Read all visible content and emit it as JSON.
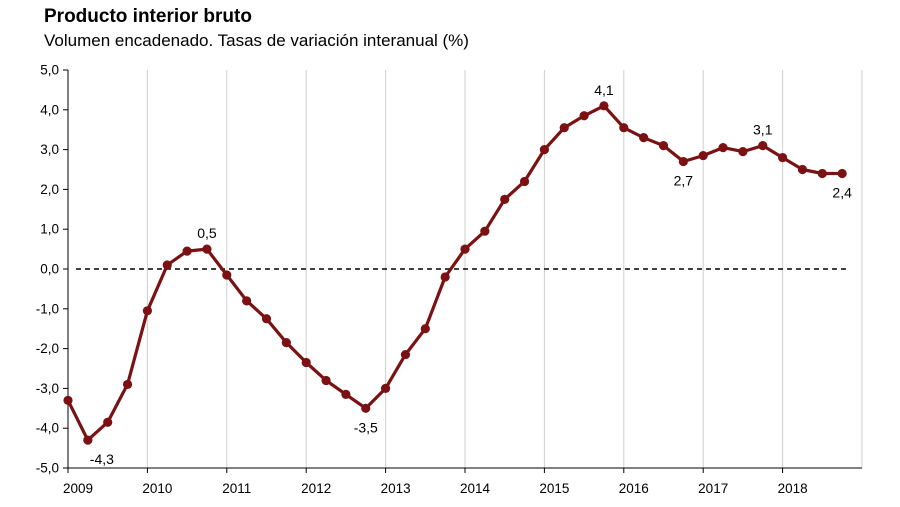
{
  "chart_data": {
    "type": "line",
    "title": "Producto interior bruto",
    "subtitle": "Volumen encadenado. Tasas de variación interanual (%)",
    "xlabel": "",
    "ylabel": "",
    "ylim": [
      -5,
      5
    ],
    "yticks": [
      5,
      4,
      3,
      2,
      1,
      0,
      -1,
      -2,
      -3,
      -4,
      -5
    ],
    "ytick_labels": [
      "5,0",
      "4,0",
      "3,0",
      "2,0",
      "1,0",
      "0,0",
      "-1,0",
      "-2,0",
      "-3,0",
      "-4,0",
      "-5,0"
    ],
    "xlim": [
      2009,
      2019
    ],
    "xticks": [
      2009,
      2010,
      2011,
      2012,
      2013,
      2014,
      2015,
      2016,
      2017,
      2018
    ],
    "xtick_labels": [
      "2009",
      "2010",
      "2011",
      "2012",
      "2013",
      "2014",
      "2015",
      "2016",
      "2017",
      "2018"
    ],
    "grid": "vertical",
    "reference_line": 0,
    "series": [
      {
        "color": "#7b1113",
        "x": [
          2009.0,
          2009.25,
          2009.5,
          2009.75,
          2010.0,
          2010.25,
          2010.5,
          2010.75,
          2011.0,
          2011.25,
          2011.5,
          2011.75,
          2012.0,
          2012.25,
          2012.5,
          2012.75,
          2013.0,
          2013.25,
          2013.5,
          2013.75,
          2014.0,
          2014.25,
          2014.5,
          2014.75,
          2015.0,
          2015.25,
          2015.5,
          2015.75,
          2016.0,
          2016.25,
          2016.5,
          2016.75,
          2017.0,
          2017.25,
          2017.5,
          2017.75,
          2018.0,
          2018.25,
          2018.5,
          2018.75
        ],
        "y": [
          -3.3,
          -4.3,
          -3.85,
          -2.9,
          -1.05,
          0.1,
          0.45,
          0.5,
          -0.15,
          -0.8,
          -1.25,
          -1.85,
          -2.35,
          -2.8,
          -3.15,
          -3.5,
          -3.0,
          -2.15,
          -1.5,
          -0.2,
          0.5,
          0.95,
          1.75,
          2.2,
          3.0,
          3.55,
          3.85,
          4.1,
          3.55,
          3.3,
          3.1,
          2.7,
          2.85,
          3.05,
          2.95,
          3.1,
          2.8,
          2.5,
          2.4,
          2.4
        ]
      }
    ],
    "annotations": [
      {
        "text": "-4,3",
        "x": 2009.25,
        "y": -4.3,
        "pos": "below"
      },
      {
        "text": "0,5",
        "x": 2010.75,
        "y": 0.5,
        "pos": "above"
      },
      {
        "text": "-3,5",
        "x": 2012.75,
        "y": -3.5,
        "pos": "below"
      },
      {
        "text": "4,1",
        "x": 2015.75,
        "y": 4.1,
        "pos": "above"
      },
      {
        "text": "2,7",
        "x": 2016.75,
        "y": 2.7,
        "pos": "below"
      },
      {
        "text": "3,1",
        "x": 2017.75,
        "y": 3.1,
        "pos": "above"
      },
      {
        "text": "2,4",
        "x": 2018.75,
        "y": 2.4,
        "pos": "below"
      }
    ]
  }
}
